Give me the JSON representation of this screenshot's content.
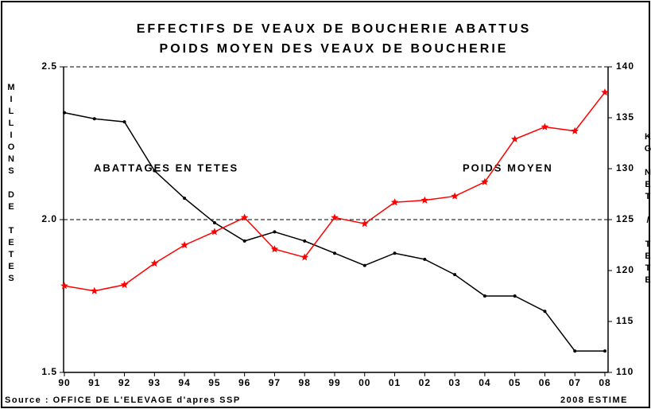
{
  "chart_data": {
    "type": "line",
    "title": "EFFECTIFS DE VEAUX DE BOUCHERIE ABATTUS",
    "subtitle": "POIDS MOYEN DES VEAUX DE BOUCHERIE",
    "y_label": "MILLIONS DE TETES",
    "y2_label": "KG NET / TETE",
    "annotations": [
      "ABATTAGES EN TETES",
      "POIDS MOYEN"
    ],
    "source": "Source : OFFICE DE L'ELEVAGE d'apres SSP",
    "note": "2008 ESTIME",
    "categories": [
      "90",
      "91",
      "92",
      "93",
      "94",
      "95",
      "96",
      "97",
      "98",
      "99",
      "00",
      "01",
      "02",
      "03",
      "04",
      "05",
      "06",
      "07",
      "08"
    ],
    "series": [
      {
        "name": "ABATTAGES EN TETES",
        "color": "#000000",
        "marker": "dot",
        "values": [
          2.35,
          2.33,
          2.32,
          2.16,
          2.07,
          1.99,
          1.93,
          1.96,
          1.93,
          1.89,
          1.85,
          1.89,
          1.87,
          1.82,
          1.75,
          1.75,
          1.7,
          1.57,
          1.57
        ]
      },
      {
        "name": "POIDS MOYEN",
        "color": "#ff0000",
        "marker": "star",
        "axis": "y2",
        "values": [
          118.5,
          118.0,
          118.6,
          120.7,
          122.5,
          123.8,
          125.2,
          122.1,
          121.3,
          125.2,
          124.6,
          126.7,
          126.9,
          127.3,
          128.7,
          132.9,
          134.1,
          133.7,
          137.5
        ]
      }
    ],
    "ylim": [
      1.5,
      2.5
    ],
    "yticks": [
      1.5,
      {
        "value": 2.0,
        "label": "2.0"
      },
      2.5
    ],
    "y2lim": [
      110,
      140
    ],
    "y2ticks": [
      110,
      115,
      120,
      125,
      130,
      135,
      140
    ],
    "grid": true
  }
}
